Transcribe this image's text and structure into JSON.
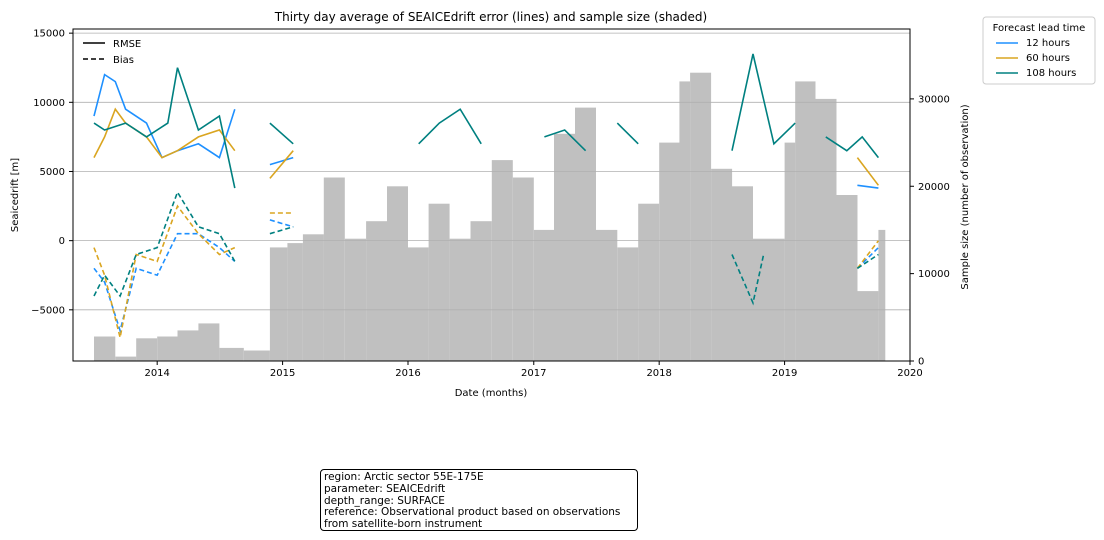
{
  "chart_data": {
    "type": "line",
    "title": "Thirty day average of SEAICEdrift error (lines) and sample size (shaded)",
    "xlabel": "Date (months)",
    "ylabel": "Seaicedrift [m]",
    "y2label": "Sample size (number of observation)",
    "xlim": [
      "2013-05-01",
      "2020-01-01"
    ],
    "xticks": [
      "2014",
      "2015",
      "2016",
      "2017",
      "2018",
      "2019",
      "2020"
    ],
    "ylim": [
      -8700,
      15300
    ],
    "yticks": [
      -5000,
      0,
      5000,
      10000,
      15000
    ],
    "y2lim": [
      0,
      38000
    ],
    "y2ticks": [
      0,
      10000,
      20000,
      30000
    ],
    "grid": "horizontal",
    "style_legend": {
      "placement": "top-left",
      "entries": [
        {
          "label": "RMSE",
          "dash": "solid"
        },
        {
          "label": "Bias",
          "dash": "dashed"
        }
      ]
    },
    "legend": {
      "title": "Forecast lead time",
      "placement": "outside-top-right"
    },
    "colors": {
      "12 hours": "#1e90ff",
      "60 hours": "#daa520",
      "108 hours": "#008080",
      "sample": "#c0c0c0"
    },
    "sample_size": {
      "x": [
        "2013-07-01",
        "2013-09-01",
        "2013-11-01",
        "2014-01-01",
        "2014-03-01",
        "2014-05-01",
        "2014-07-01",
        "2014-09-10",
        "2014-11-25",
        "2015-01-15",
        "2015-03-01",
        "2015-05-01",
        "2015-07-01",
        "2015-09-01",
        "2015-11-01",
        "2016-01-01",
        "2016-03-01",
        "2016-05-01",
        "2016-07-01",
        "2016-09-01",
        "2016-11-01",
        "2017-01-01",
        "2017-03-01",
        "2017-05-01",
        "2017-07-01",
        "2017-09-01",
        "2017-11-01",
        "2018-01-01",
        "2018-03-01",
        "2018-04-01",
        "2018-06-01",
        "2018-08-01",
        "2018-10-01",
        "2018-12-01",
        "2019-01-01",
        "2019-02-01",
        "2019-04-01",
        "2019-06-01",
        "2019-08-01",
        "2019-10-01"
      ],
      "values": [
        2800,
        500,
        2600,
        2800,
        3500,
        4300,
        1500,
        1200,
        13000,
        13500,
        14500,
        21000,
        14000,
        16000,
        20000,
        13000,
        18000,
        14000,
        16000,
        23000,
        21000,
        15000,
        26000,
        29000,
        15000,
        13000,
        18000,
        25000,
        32000,
        33000,
        22000,
        20000,
        14000,
        14000,
        25000,
        32000,
        30000,
        19000,
        8000,
        15000
      ]
    },
    "series": [
      {
        "name": "12 hours",
        "metric": "RMSE",
        "x": [
          "2013-07-01",
          "2013-08-01",
          "2013-09-01",
          "2013-10-01",
          "2013-12-01",
          "2014-01-15",
          "2014-03-01",
          "2014-05-01",
          "2014-07-01",
          "2014-08-15",
          "2014-11-25",
          "2015-02-01",
          "2015-05-01",
          "2015-08-01",
          "2015-11-01",
          "2016-02-01",
          "2016-05-01",
          "2016-08-01",
          "2016-11-01",
          "2017-02-01",
          "2017-05-01",
          "2017-08-01",
          "2017-11-01",
          "2018-02-01",
          "2018-05-01",
          "2018-08-01",
          "2018-11-01",
          "2019-02-01",
          "2019-05-01",
          "2019-08-01",
          "2019-10-01"
        ],
        "values": [
          9000,
          12000,
          11500,
          9500,
          8500,
          6000,
          6500,
          7000,
          6000,
          9500,
          5500,
          6000,
          5000,
          5500,
          6000,
          4500,
          5500,
          5000,
          5500,
          5500,
          6000,
          5000,
          4500,
          4000,
          4000,
          4500,
          4000,
          5000,
          4500,
          4000,
          3800
        ]
      },
      {
        "name": "60 hours",
        "metric": "RMSE",
        "x": [
          "2013-07-01",
          "2013-08-01",
          "2013-09-01",
          "2013-10-01",
          "2013-12-01",
          "2014-01-15",
          "2014-03-01",
          "2014-05-01",
          "2014-07-01",
          "2014-08-15",
          "2014-11-25",
          "2015-02-01",
          "2015-05-01",
          "2015-08-01",
          "2015-11-01",
          "2016-02-01",
          "2016-05-01",
          "2016-08-01",
          "2016-11-01",
          "2017-02-01",
          "2017-05-01",
          "2017-08-01",
          "2017-11-01",
          "2018-02-01",
          "2018-05-01",
          "2018-08-01",
          "2018-11-01",
          "2019-02-01",
          "2019-05-01",
          "2019-08-01",
          "2019-10-01"
        ],
        "values": [
          6000,
          7500,
          9500,
          8500,
          7500,
          6000,
          6500,
          7500,
          8000,
          6500,
          4500,
          6500,
          6000,
          6500,
          5500,
          6000,
          6500,
          5500,
          7000,
          7000,
          6500,
          5000,
          4500,
          5000,
          4500,
          4500,
          4500,
          4000,
          5000,
          6000,
          4000
        ]
      },
      {
        "name": "108 hours",
        "metric": "RMSE",
        "x": [
          "2013-07-01",
          "2013-08-01",
          "2013-10-01",
          "2013-12-01",
          "2014-02-01",
          "2014-03-01",
          "2014-05-01",
          "2014-07-01",
          "2014-08-15",
          "2014-11-25",
          "2015-02-01",
          "2015-05-01",
          "2015-08-01",
          "2015-11-01",
          "2016-02-01",
          "2016-04-01",
          "2016-06-01",
          "2016-08-01",
          "2016-11-01",
          "2017-02-01",
          "2017-04-01",
          "2017-06-01",
          "2017-09-01",
          "2017-11-01",
          "2018-02-01",
          "2018-05-01",
          "2018-08-01",
          "2018-10-01",
          "2018-12-01",
          "2019-02-01",
          "2019-05-01",
          "2019-07-01",
          "2019-08-15",
          "2019-10-01"
        ],
        "values": [
          8500,
          8000,
          8500,
          7500,
          8500,
          12500,
          8000,
          9000,
          3800,
          8500,
          7000,
          9500,
          7000,
          8500,
          7000,
          8500,
          9500,
          7000,
          8500,
          7500,
          8000,
          6500,
          8500,
          7000,
          7000,
          6500,
          6500,
          13500,
          7000,
          8500,
          7500,
          6500,
          7500,
          6000
        ]
      },
      {
        "name": "12 hours",
        "metric": "Bias",
        "x": [
          "2013-07-01",
          "2013-08-01",
          "2013-09-15",
          "2013-11-01",
          "2014-01-01",
          "2014-03-01",
          "2014-05-01",
          "2014-07-01",
          "2014-08-15",
          "2014-11-25",
          "2015-02-01",
          "2015-05-01",
          "2015-08-01",
          "2015-11-01",
          "2016-02-01",
          "2016-05-01",
          "2016-08-01",
          "2016-11-01",
          "2017-02-01",
          "2017-05-01",
          "2017-08-01",
          "2017-11-01",
          "2018-02-01",
          "2018-05-01",
          "2018-08-01",
          "2018-11-01",
          "2019-02-01",
          "2019-05-01",
          "2019-08-01",
          "2019-10-01"
        ],
        "values": [
          -2000,
          -3000,
          -6500,
          -2000,
          -2500,
          500,
          500,
          -500,
          -1500,
          1500,
          1000,
          -500,
          2000,
          0,
          2500,
          1000,
          -1500,
          1000,
          2000,
          1500,
          -2500,
          1000,
          -3000,
          500,
          0,
          -500,
          1000,
          1500,
          -2000,
          -500
        ]
      },
      {
        "name": "60 hours",
        "metric": "Bias",
        "x": [
          "2013-07-01",
          "2013-08-01",
          "2013-09-15",
          "2013-11-01",
          "2014-01-01",
          "2014-03-01",
          "2014-05-01",
          "2014-07-01",
          "2014-08-15",
          "2014-11-25",
          "2015-02-01",
          "2015-05-01",
          "2015-08-01",
          "2015-11-01",
          "2016-02-01",
          "2016-05-01",
          "2016-08-01",
          "2016-11-01",
          "2017-02-01",
          "2017-05-01",
          "2017-08-01",
          "2017-11-01",
          "2018-02-01",
          "2018-05-01",
          "2018-08-01",
          "2018-11-01",
          "2019-02-01",
          "2019-05-01",
          "2019-08-01",
          "2019-10-01"
        ],
        "values": [
          -500,
          -2500,
          -7000,
          -1000,
          -1500,
          2500,
          500,
          -1000,
          -500,
          2000,
          2000,
          500,
          2000,
          1000,
          2500,
          1500,
          -3500,
          1000,
          2500,
          1500,
          -3000,
          500,
          -2500,
          0,
          500,
          -1000,
          1000,
          1000,
          -2000,
          0
        ]
      },
      {
        "name": "108 hours",
        "metric": "Bias",
        "x": [
          "2013-07-01",
          "2013-08-01",
          "2013-09-15",
          "2013-11-01",
          "2014-01-01",
          "2014-03-01",
          "2014-05-01",
          "2014-07-01",
          "2014-08-15",
          "2014-11-25",
          "2015-02-01",
          "2015-05-01",
          "2015-08-01",
          "2015-11-01",
          "2016-02-01",
          "2016-05-01",
          "2016-08-01",
          "2016-11-01",
          "2017-02-01",
          "2017-05-01",
          "2017-08-01",
          "2017-11-01",
          "2018-02-01",
          "2018-05-01",
          "2018-08-01",
          "2018-10-01",
          "2018-11-01",
          "2019-02-01",
          "2019-05-01",
          "2019-08-01",
          "2019-10-01"
        ],
        "values": [
          -4000,
          -2500,
          -4000,
          -1000,
          -500,
          3500,
          1000,
          500,
          -1500,
          500,
          1000,
          1500,
          1000,
          2000,
          4000,
          2500,
          -2000,
          500,
          2000,
          2500,
          -2500,
          1500,
          -3500,
          -500,
          -1000,
          -4500,
          -1000,
          1000,
          1500,
          -2000,
          -1000
        ]
      }
    ]
  },
  "info_box": {
    "lines": [
      "region: Arctic sector 55E-175E",
      "parameter: SEAICEdrift",
      "depth_range: SURFACE",
      "reference: Observational product based on observations",
      "from satellite-born instrument"
    ]
  }
}
